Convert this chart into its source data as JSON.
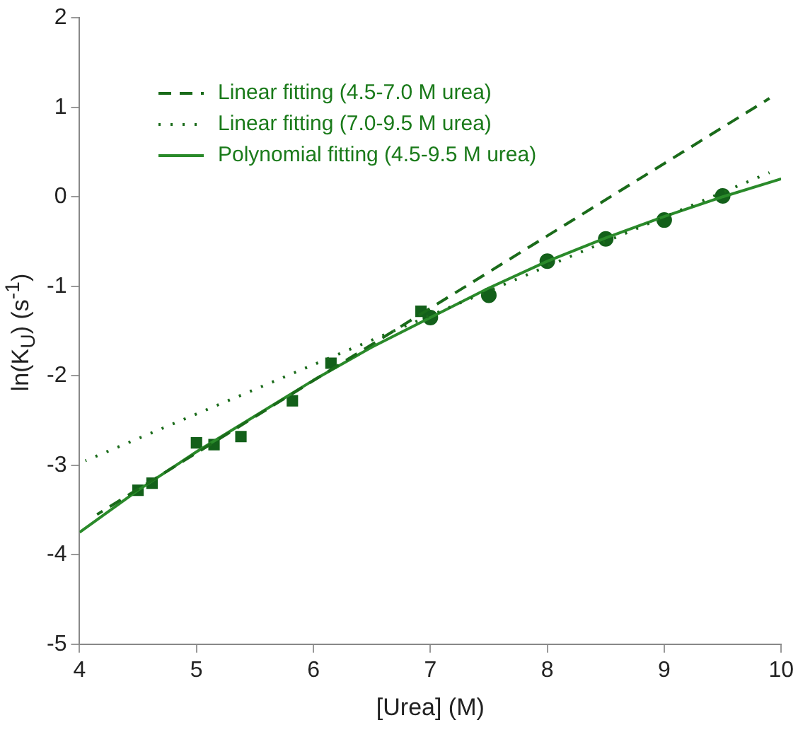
{
  "chart_data": {
    "type": "scatter",
    "xlabel": "[Urea] (M)",
    "ylabel": "ln(K$_{U}$) (s$^{-1}$)",
    "xlim": [
      4,
      10
    ],
    "xticks": [
      4,
      5,
      6,
      7,
      8,
      9,
      10
    ],
    "ylim": [
      -5,
      2
    ],
    "yticks": [
      -5,
      -4,
      -3,
      -2,
      -1,
      0,
      1,
      2
    ],
    "grid": false,
    "legend": "top left",
    "series": [
      {
        "type": "line",
        "name": "Linear fitting (4.5-7.0 M urea)",
        "color": "#1a6b1a",
        "line_style": "dashed",
        "marker": "none",
        "x": [
          4.15,
          9.9
        ],
        "values": [
          -3.55,
          1.1
        ]
      },
      {
        "type": "line",
        "name": "Linear fitting (7.0-9.5 M urea)",
        "color": "#1a6b1a",
        "line_style": "dotted",
        "marker": "none",
        "x": [
          4.05,
          9.9
        ],
        "values": [
          -2.95,
          0.27
        ]
      },
      {
        "type": "line",
        "name": "Polynomial fitting (4.5-9.5 M urea)",
        "color": "#2a8a2a",
        "line_style": "solid",
        "marker": "none",
        "x": [
          4,
          4.5,
          5,
          5.5,
          6,
          6.5,
          7,
          7.5,
          8,
          8.5,
          9,
          9.5,
          10
        ],
        "values": [
          -3.75,
          -3.28,
          -2.85,
          -2.45,
          -2.05,
          -1.68,
          -1.35,
          -1.02,
          -0.72,
          -0.46,
          -0.22,
          0,
          0.2
        ]
      },
      {
        "type": "scatter",
        "color": "#13601a",
        "marker": "square",
        "x": [
          4.5,
          4.62,
          5.0,
          5.15,
          5.38,
          5.82,
          6.15,
          6.92
        ],
        "values": [
          -3.28,
          -3.2,
          -2.75,
          -2.77,
          -2.68,
          -2.28,
          -1.86,
          -1.28
        ]
      },
      {
        "type": "scatter",
        "color": "#13601a",
        "marker": "circle",
        "x": [
          7.0,
          7.5,
          8.0,
          8.5,
          9.0,
          9.5
        ],
        "values": [
          -1.35,
          -1.1,
          -0.72,
          -0.47,
          -0.26,
          0.01
        ]
      }
    ]
  }
}
